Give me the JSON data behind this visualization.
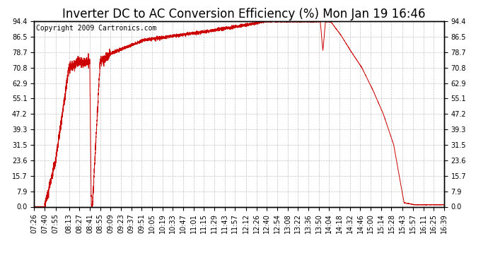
{
  "title": "Inverter DC to AC Conversion Efficiency (%) Mon Jan 19 16:46",
  "copyright": "Copyright 2009 Cartronics.com",
  "line_color": "#cc0000",
  "bg_color": "#ffffff",
  "plot_bg_color": "#ffffff",
  "grid_color": "#aaaaaa",
  "ylim": [
    0.0,
    94.4
  ],
  "yticks": [
    0.0,
    7.9,
    15.7,
    23.6,
    31.5,
    39.3,
    47.2,
    55.1,
    62.9,
    70.8,
    78.7,
    86.5,
    94.4
  ],
  "xtick_labels": [
    "07:26",
    "07:40",
    "07:55",
    "08:13",
    "08:27",
    "08:41",
    "08:55",
    "09:09",
    "09:23",
    "09:37",
    "09:51",
    "10:05",
    "10:19",
    "10:33",
    "10:47",
    "11:01",
    "11:15",
    "11:29",
    "11:43",
    "11:57",
    "12:12",
    "12:26",
    "12:40",
    "12:54",
    "13:08",
    "13:22",
    "13:36",
    "13:50",
    "14:04",
    "14:18",
    "14:32",
    "14:46",
    "15:00",
    "15:14",
    "15:28",
    "15:43",
    "15:57",
    "16:11",
    "16:25",
    "16:39"
  ],
  "title_fontsize": 12,
  "copyright_fontsize": 7,
  "tick_fontsize": 7
}
